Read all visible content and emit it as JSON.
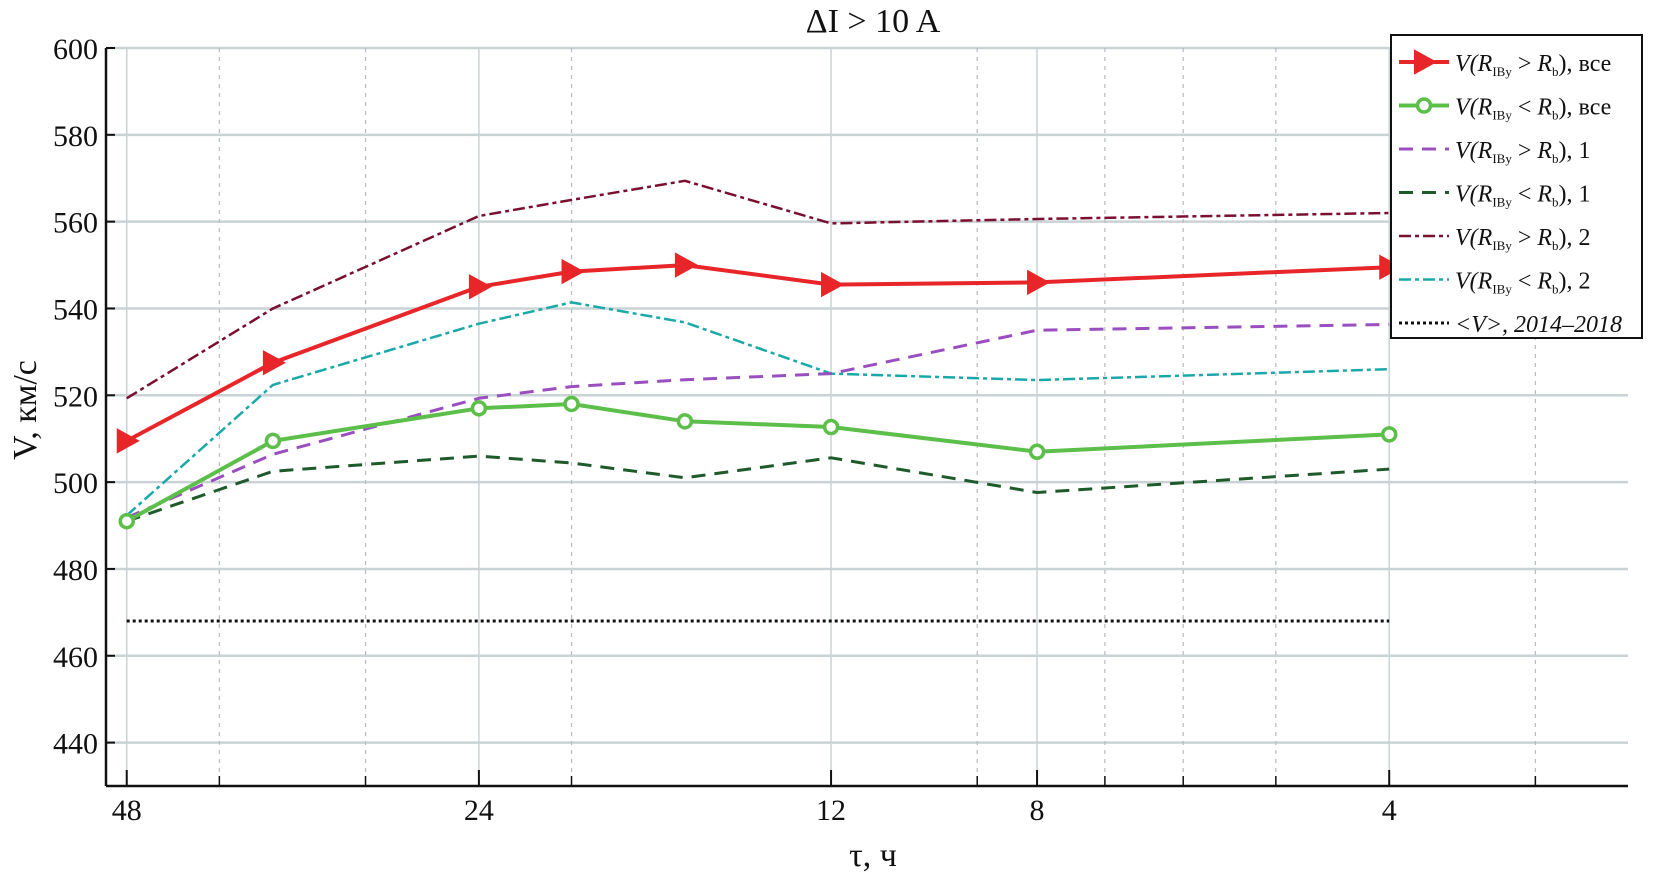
{
  "chart_data": {
    "type": "line",
    "title": "ΔI > 10 A",
    "xlabel": "τ, ч",
    "ylabel": "V, км/с",
    "x_scale": "log",
    "x_reversed": true,
    "xlim": [
      50,
      2.5
    ],
    "ylim": [
      430,
      600
    ],
    "x_ticks": [
      48,
      24,
      12,
      8,
      4
    ],
    "x_tick_labels": [
      "48",
      "24",
      "12",
      "8",
      "4"
    ],
    "x_minor_grid": [
      40,
      30,
      20,
      9,
      7,
      6,
      5,
      3
    ],
    "y_ticks": [
      440,
      460,
      480,
      500,
      520,
      540,
      560,
      580,
      600
    ],
    "y_tick_labels": [
      "440",
      "460",
      "480",
      "500",
      "520",
      "540",
      "560",
      "580",
      "600"
    ],
    "grid": true,
    "legend_position": "top-right",
    "x": [
      48,
      36,
      24,
      20,
      16,
      12,
      8,
      4
    ],
    "series": [
      {
        "name": "V(R_IBy > R_b), все",
        "legend": {
          "v": "V(",
          "r1": "R",
          "s1": "IBy",
          "op": " > ",
          "r2": "R",
          "s2": "b",
          "tail": "), все"
        },
        "color": "#e8262a",
        "style": "solid",
        "width": 4,
        "marker": "triangle-right",
        "values": [
          509.5,
          527.5,
          545,
          548.5,
          550,
          545.5,
          546,
          549.5
        ]
      },
      {
        "name": "V(R_IBy < R_b), все",
        "legend": {
          "v": "V(",
          "r1": "R",
          "s1": "IBy",
          "op": " < ",
          "r2": "R",
          "s2": "b",
          "tail": "), все"
        },
        "color": "#5cbf4a",
        "style": "solid",
        "width": 4,
        "marker": "circle",
        "values": [
          491,
          509.5,
          517,
          518,
          514,
          512.7,
          507,
          511
        ]
      },
      {
        "name": "V(R_IBy > R_b), 1",
        "legend": {
          "v": "V(",
          "r1": "R",
          "s1": "IBy",
          "op": " > ",
          "r2": "R",
          "s2": "b",
          "tail": "), 1"
        },
        "color": "#9a4fc0",
        "style": "dashed",
        "width": 3,
        "marker": "none",
        "values": [
          491.8,
          506.4,
          519.3,
          522,
          523.6,
          525,
          535,
          536.3
        ]
      },
      {
        "name": "V(R_IBy < R_b), 1",
        "legend": {
          "v": "V(",
          "r1": "R",
          "s1": "IBy",
          "op": " < ",
          "r2": "R",
          "s2": "b",
          "tail": "), 1"
        },
        "color": "#1e5a2a",
        "style": "dashed",
        "width": 3,
        "marker": "none",
        "values": [
          491,
          502.5,
          506,
          504.4,
          501,
          505.6,
          497.6,
          503
        ]
      },
      {
        "name": "V(R_IBy > R_b), 2",
        "legend": {
          "v": "V(",
          "r1": "R",
          "s1": "IBy",
          "op": " > ",
          "r2": "R",
          "s2": "b",
          "tail": "), 2"
        },
        "color": "#7a1030",
        "style": "dashdot",
        "width": 2.5,
        "marker": "none",
        "values": [
          519.3,
          540,
          561.3,
          565,
          569.4,
          559.6,
          560.6,
          562
        ]
      },
      {
        "name": "V(R_IBy < R_b), 2",
        "legend": {
          "v": "V(",
          "r1": "R",
          "s1": "IBy",
          "op": " < ",
          "r2": "R",
          "s2": "b",
          "tail": "), 2"
        },
        "color": "#1aa9a9",
        "style": "dashdot",
        "width": 2.5,
        "marker": "none",
        "values": [
          492.3,
          522.4,
          536.5,
          541.4,
          536.8,
          525,
          523.5,
          526
        ]
      },
      {
        "name": "<V>, 2014–2018",
        "legend": {
          "v": "<V>, 2014–2018",
          "r1": "",
          "s1": "",
          "op": "",
          "r2": "",
          "s2": "",
          "tail": ""
        },
        "color": "#111111",
        "style": "dotted",
        "width": 3,
        "marker": "none",
        "values": [
          468,
          468,
          468,
          468,
          468,
          468,
          468,
          468
        ]
      }
    ]
  }
}
